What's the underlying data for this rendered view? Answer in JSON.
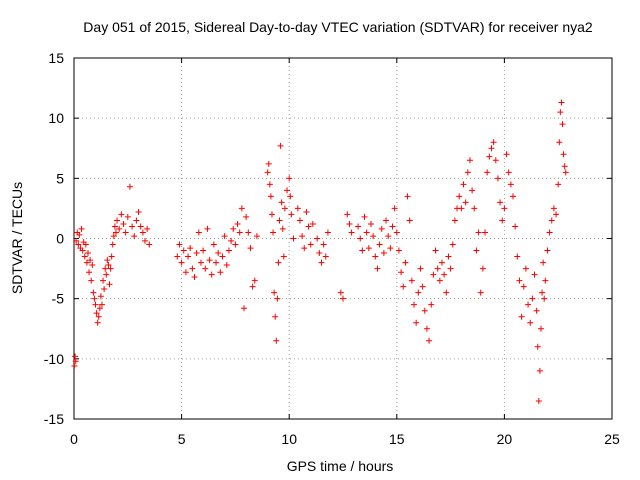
{
  "chart_data": {
    "type": "scatter",
    "title": "Day 051 of 2015, Sidereal Day-to-day VTEC variation (SDTVAR) for receiver nya2",
    "xlabel": "GPS time / hours",
    "ylabel": "SDTVAR / TECUs",
    "xlim": [
      0,
      25
    ],
    "ylim": [
      -15,
      15
    ],
    "xticks": [
      0,
      5,
      10,
      15,
      20,
      25
    ],
    "yticks": [
      -15,
      -10,
      -5,
      0,
      5,
      10,
      15
    ],
    "grid": true,
    "marker": "+",
    "color": "#ff0000",
    "series": [
      {
        "name": "SDTVAR",
        "points": [
          [
            0.02,
            -10.6
          ],
          [
            0.05,
            -9.8
          ],
          [
            0.08,
            -10.2
          ],
          [
            0.1,
            -0.2
          ],
          [
            0.15,
            0.5
          ],
          [
            0.2,
            -0.5
          ],
          [
            0.25,
            0.3
          ],
          [
            0.3,
            -0.8
          ],
          [
            0.35,
            0.8
          ],
          [
            0.4,
            -1.0
          ],
          [
            0.45,
            -0.3
          ],
          [
            0.5,
            -1.5
          ],
          [
            0.55,
            -0.5
          ],
          [
            0.6,
            -2.0
          ],
          [
            0.65,
            -1.2
          ],
          [
            0.7,
            -2.8
          ],
          [
            0.75,
            -1.8
          ],
          [
            0.8,
            -3.5
          ],
          [
            0.85,
            -2.2
          ],
          [
            0.9,
            -4.5
          ],
          [
            0.95,
            -5.0
          ],
          [
            1.0,
            -5.5
          ],
          [
            1.05,
            -6.2
          ],
          [
            1.1,
            -7.0
          ],
          [
            1.15,
            -6.5
          ],
          [
            1.2,
            -5.8
          ],
          [
            1.25,
            -4.8
          ],
          [
            1.3,
            -5.5
          ],
          [
            1.35,
            -3.5
          ],
          [
            1.4,
            -4.2
          ],
          [
            1.45,
            -2.5
          ],
          [
            1.5,
            -3.0
          ],
          [
            1.55,
            -1.8
          ],
          [
            1.6,
            -2.2
          ],
          [
            1.65,
            -3.8
          ],
          [
            1.7,
            -2.5
          ],
          [
            1.75,
            -1.5
          ],
          [
            1.8,
            -0.5
          ],
          [
            1.85,
            0.2
          ],
          [
            1.9,
            1.0
          ],
          [
            1.95,
            0.5
          ],
          [
            2.0,
            1.5
          ],
          [
            2.1,
            0.8
          ],
          [
            2.2,
            2.0
          ],
          [
            2.3,
            1.2
          ],
          [
            2.4,
            0.5
          ],
          [
            2.5,
            1.8
          ],
          [
            2.6,
            4.3
          ],
          [
            2.7,
            1.0
          ],
          [
            2.8,
            0.2
          ],
          [
            2.9,
            1.5
          ],
          [
            3.0,
            2.2
          ],
          [
            3.1,
            1.0
          ],
          [
            3.2,
            0.5
          ],
          [
            3.3,
            -0.2
          ],
          [
            3.4,
            0.8
          ],
          [
            3.5,
            -0.5
          ],
          [
            4.8,
            -1.5
          ],
          [
            4.9,
            -0.5
          ],
          [
            5.0,
            -2.0
          ],
          [
            5.1,
            -1.0
          ],
          [
            5.2,
            -2.8
          ],
          [
            5.3,
            -1.5
          ],
          [
            5.4,
            -0.8
          ],
          [
            5.5,
            -2.5
          ],
          [
            5.6,
            -3.2
          ],
          [
            5.7,
            -1.2
          ],
          [
            5.8,
            0.5
          ],
          [
            5.9,
            -2.0
          ],
          [
            6.0,
            -1.0
          ],
          [
            6.1,
            -2.5
          ],
          [
            6.2,
            0.8
          ],
          [
            6.3,
            -1.8
          ],
          [
            6.4,
            -3.0
          ],
          [
            6.5,
            -0.5
          ],
          [
            6.6,
            -2.0
          ],
          [
            6.7,
            -1.2
          ],
          [
            6.8,
            -2.8
          ],
          [
            6.9,
            -1.5
          ],
          [
            7.0,
            0.2
          ],
          [
            7.1,
            -2.2
          ],
          [
            7.2,
            -1.0
          ],
          [
            7.3,
            -0.2
          ],
          [
            7.4,
            0.8
          ],
          [
            7.5,
            -0.5
          ],
          [
            7.6,
            1.2
          ],
          [
            7.7,
            0.5
          ],
          [
            7.8,
            2.5
          ],
          [
            7.9,
            -5.8
          ],
          [
            8.0,
            1.8
          ],
          [
            8.1,
            0.5
          ],
          [
            8.2,
            -0.8
          ],
          [
            8.3,
            -4.0
          ],
          [
            8.4,
            -3.5
          ],
          [
            8.5,
            0.2
          ],
          [
            9.0,
            5.5
          ],
          [
            9.05,
            6.2
          ],
          [
            9.1,
            4.5
          ],
          [
            9.15,
            3.5
          ],
          [
            9.2,
            2.0
          ],
          [
            9.25,
            0.5
          ],
          [
            9.3,
            -4.5
          ],
          [
            9.35,
            -6.5
          ],
          [
            9.4,
            -8.5
          ],
          [
            9.45,
            -5.0
          ],
          [
            9.5,
            -2.0
          ],
          [
            9.55,
            1.5
          ],
          [
            9.6,
            7.7
          ],
          [
            9.65,
            3.0
          ],
          [
            9.7,
            0.8
          ],
          [
            9.75,
            -1.5
          ],
          [
            9.8,
            2.5
          ],
          [
            9.9,
            4.0
          ],
          [
            10.0,
            5.0
          ],
          [
            10.05,
            3.5
          ],
          [
            10.1,
            2.0
          ],
          [
            10.2,
            0.0
          ],
          [
            10.4,
            2.5
          ],
          [
            10.5,
            1.5
          ],
          [
            10.6,
            0.2
          ],
          [
            10.7,
            -0.8
          ],
          [
            10.8,
            2.2
          ],
          [
            10.9,
            1.0
          ],
          [
            11.0,
            -0.5
          ],
          [
            11.1,
            1.2
          ],
          [
            11.3,
            0.0
          ],
          [
            11.4,
            -1.2
          ],
          [
            11.5,
            -2.0
          ],
          [
            11.6,
            -0.5
          ],
          [
            11.7,
            -1.5
          ],
          [
            11.8,
            0.5
          ],
          [
            12.4,
            -4.5
          ],
          [
            12.5,
            -5.0
          ],
          [
            12.7,
            2.0
          ],
          [
            12.8,
            1.2
          ],
          [
            12.9,
            0.5
          ],
          [
            13.2,
            1.0
          ],
          [
            13.3,
            0.0
          ],
          [
            13.4,
            -1.0
          ],
          [
            13.5,
            1.8
          ],
          [
            13.6,
            0.5
          ],
          [
            13.7,
            -0.8
          ],
          [
            13.8,
            1.2
          ],
          [
            13.9,
            0.2
          ],
          [
            14.0,
            -1.5
          ],
          [
            14.1,
            -2.5
          ],
          [
            14.2,
            -0.5
          ],
          [
            14.3,
            0.8
          ],
          [
            14.4,
            -1.2
          ],
          [
            14.5,
            1.5
          ],
          [
            14.6,
            0.2
          ],
          [
            14.7,
            -0.8
          ],
          [
            14.8,
            1.0
          ],
          [
            14.9,
            2.5
          ],
          [
            15.0,
            0.5
          ],
          [
            15.1,
            -1.0
          ],
          [
            15.2,
            -2.8
          ],
          [
            15.3,
            -4.0
          ],
          [
            15.4,
            -2.0
          ],
          [
            15.5,
            3.5
          ],
          [
            15.6,
            1.5
          ],
          [
            15.7,
            -3.5
          ],
          [
            15.8,
            -5.5
          ],
          [
            15.9,
            -7.0
          ],
          [
            16.0,
            -4.5
          ],
          [
            16.1,
            -2.5
          ],
          [
            16.2,
            -4.0
          ],
          [
            16.3,
            -6.0
          ],
          [
            16.4,
            -7.5
          ],
          [
            16.5,
            -8.5
          ],
          [
            16.6,
            -5.5
          ],
          [
            16.7,
            -3.0
          ],
          [
            16.8,
            -1.0
          ],
          [
            16.9,
            -2.5
          ],
          [
            17.0,
            -3.5
          ],
          [
            17.1,
            -2.0
          ],
          [
            17.2,
            -3.0
          ],
          [
            17.3,
            -4.5
          ],
          [
            17.4,
            -1.5
          ],
          [
            17.5,
            -2.5
          ],
          [
            17.6,
            -0.5
          ],
          [
            17.7,
            1.5
          ],
          [
            17.8,
            2.5
          ],
          [
            17.9,
            3.5
          ],
          [
            18.0,
            2.5
          ],
          [
            18.1,
            4.5
          ],
          [
            18.2,
            3.0
          ],
          [
            18.3,
            5.5
          ],
          [
            18.4,
            6.5
          ],
          [
            18.5,
            4.0
          ],
          [
            18.6,
            2.5
          ],
          [
            18.7,
            -1.0
          ],
          [
            18.8,
            0.5
          ],
          [
            18.9,
            -4.5
          ],
          [
            19.0,
            -2.5
          ],
          [
            19.1,
            0.5
          ],
          [
            19.2,
            5.5
          ],
          [
            19.3,
            6.8
          ],
          [
            19.4,
            7.5
          ],
          [
            19.5,
            8.0
          ],
          [
            19.6,
            6.5
          ],
          [
            19.7,
            5.0
          ],
          [
            19.8,
            3.0
          ],
          [
            19.9,
            1.5
          ],
          [
            20.0,
            2.5
          ],
          [
            20.1,
            7.0
          ],
          [
            20.2,
            5.5
          ],
          [
            20.3,
            4.5
          ],
          [
            20.4,
            3.5
          ],
          [
            20.5,
            1.0
          ],
          [
            20.6,
            -1.5
          ],
          [
            20.7,
            -3.5
          ],
          [
            20.8,
            -6.5
          ],
          [
            20.9,
            -4.0
          ],
          [
            21.0,
            -2.5
          ],
          [
            21.1,
            -5.5
          ],
          [
            21.2,
            -7.0
          ],
          [
            21.3,
            -5.0
          ],
          [
            21.4,
            -3.0
          ],
          [
            21.5,
            -6.0
          ],
          [
            21.55,
            -9.0
          ],
          [
            21.6,
            -13.5
          ],
          [
            21.65,
            -11.0
          ],
          [
            21.7,
            -7.5
          ],
          [
            21.75,
            -4.5
          ],
          [
            21.8,
            -2.0
          ],
          [
            21.85,
            -5.0
          ],
          [
            21.9,
            -3.5
          ],
          [
            22.0,
            -1.0
          ],
          [
            22.1,
            0.5
          ],
          [
            22.2,
            1.5
          ],
          [
            22.3,
            2.5
          ],
          [
            22.4,
            2.0
          ],
          [
            22.5,
            4.5
          ],
          [
            22.55,
            8.0
          ],
          [
            22.6,
            10.5
          ],
          [
            22.65,
            11.3
          ],
          [
            22.7,
            9.5
          ],
          [
            22.75,
            7.0
          ],
          [
            22.8,
            6.0
          ],
          [
            22.85,
            5.5
          ]
        ]
      }
    ]
  }
}
